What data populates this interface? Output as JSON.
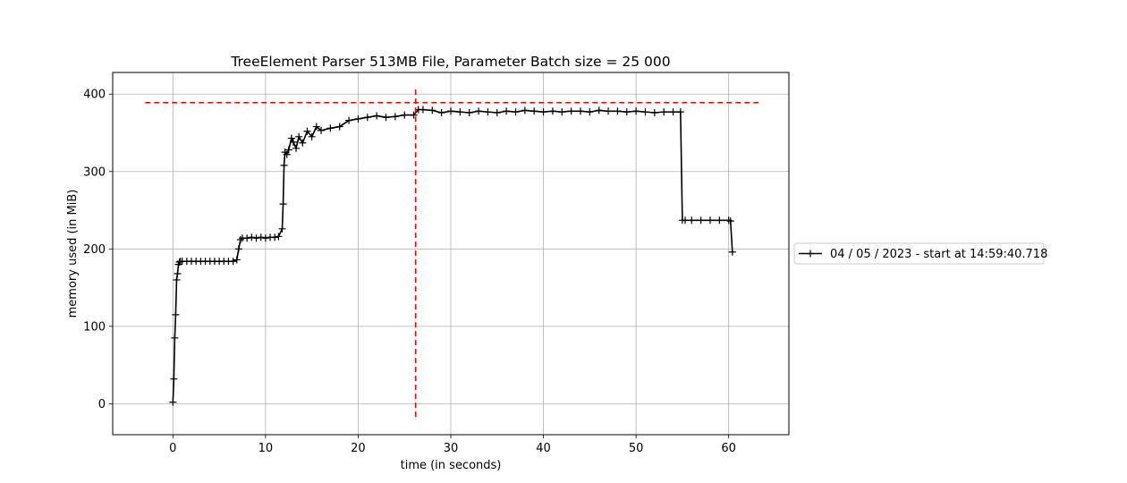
{
  "chart_data": {
    "type": "line",
    "title": "TreeElement Parser 513MB File, Parameter Batch size = 25 000",
    "xlabel": "time (in seconds)",
    "ylabel": "memory used (in MiB)",
    "xlim": [
      -6.5,
      66.5
    ],
    "ylim": [
      -40,
      428
    ],
    "x_ticks": [
      0,
      10,
      20,
      30,
      40,
      50,
      60
    ],
    "y_ticks": [
      0,
      100,
      200,
      300,
      400
    ],
    "grid": true,
    "legend_position": "right, outside plot",
    "series": [
      {
        "name": "04 / 05 / 2023 - start at 14:59:40.718",
        "color": "#000000",
        "marker": "+",
        "x": [
          0.0,
          0.1,
          0.2,
          0.3,
          0.4,
          0.5,
          0.6,
          0.7,
          0.8,
          1.0,
          1.5,
          2.0,
          2.5,
          3.0,
          3.5,
          4.0,
          4.5,
          5.0,
          5.5,
          6.0,
          6.5,
          6.9,
          7.1,
          7.3,
          7.5,
          8.0,
          8.5,
          9.0,
          9.5,
          10.0,
          10.5,
          11.0,
          11.4,
          11.8,
          11.9,
          12.0,
          12.1,
          12.3,
          12.5,
          12.8,
          13.0,
          13.3,
          13.6,
          14.0,
          14.5,
          15.0,
          15.5,
          16.0,
          17.0,
          18.0,
          19.0,
          20.0,
          21.0,
          22.0,
          23.0,
          24.0,
          25.0,
          26.0,
          26.5,
          27.0,
          28.0,
          29.0,
          30.0,
          31.0,
          32.0,
          33.0,
          34.0,
          35.0,
          36.0,
          37.0,
          38.0,
          39.0,
          40.0,
          41.0,
          42.0,
          43.0,
          44.0,
          45.0,
          46.0,
          47.0,
          48.0,
          49.0,
          50.0,
          51.0,
          52.0,
          53.0,
          54.0,
          54.8,
          55.0,
          55.3,
          56.0,
          57.0,
          58.0,
          59.0,
          60.0,
          60.2,
          60.4
        ],
        "y": [
          2,
          32,
          85,
          115,
          160,
          168,
          180,
          183,
          184,
          184,
          184,
          184,
          184,
          184,
          184,
          184,
          184,
          184,
          184,
          184,
          184,
          186,
          200,
          212,
          214,
          214,
          215,
          214,
          215,
          214,
          215,
          215,
          216,
          226,
          258,
          308,
          325,
          322,
          328,
          343,
          338,
          330,
          345,
          337,
          352,
          345,
          358,
          353,
          356,
          358,
          366,
          368,
          370,
          372,
          370,
          371,
          373,
          373,
          380,
          380,
          379,
          376,
          378,
          377,
          376,
          378,
          377,
          376,
          378,
          377,
          379,
          378,
          377,
          378,
          377,
          378,
          378,
          377,
          379,
          378,
          378,
          377,
          378,
          377,
          376,
          377,
          377,
          377,
          237,
          237,
          237,
          237,
          237,
          237,
          237,
          236,
          196
        ]
      },
      {
        "name": "",
        "color": "#ff0000",
        "style": "dashed",
        "x": [
          -3,
          63.5
        ],
        "y": [
          389,
          389
        ]
      },
      {
        "name": "",
        "color": "#ff0000",
        "style": "dashed",
        "x": [
          26.2,
          26.2
        ],
        "y": [
          -17,
          409
        ]
      }
    ]
  }
}
